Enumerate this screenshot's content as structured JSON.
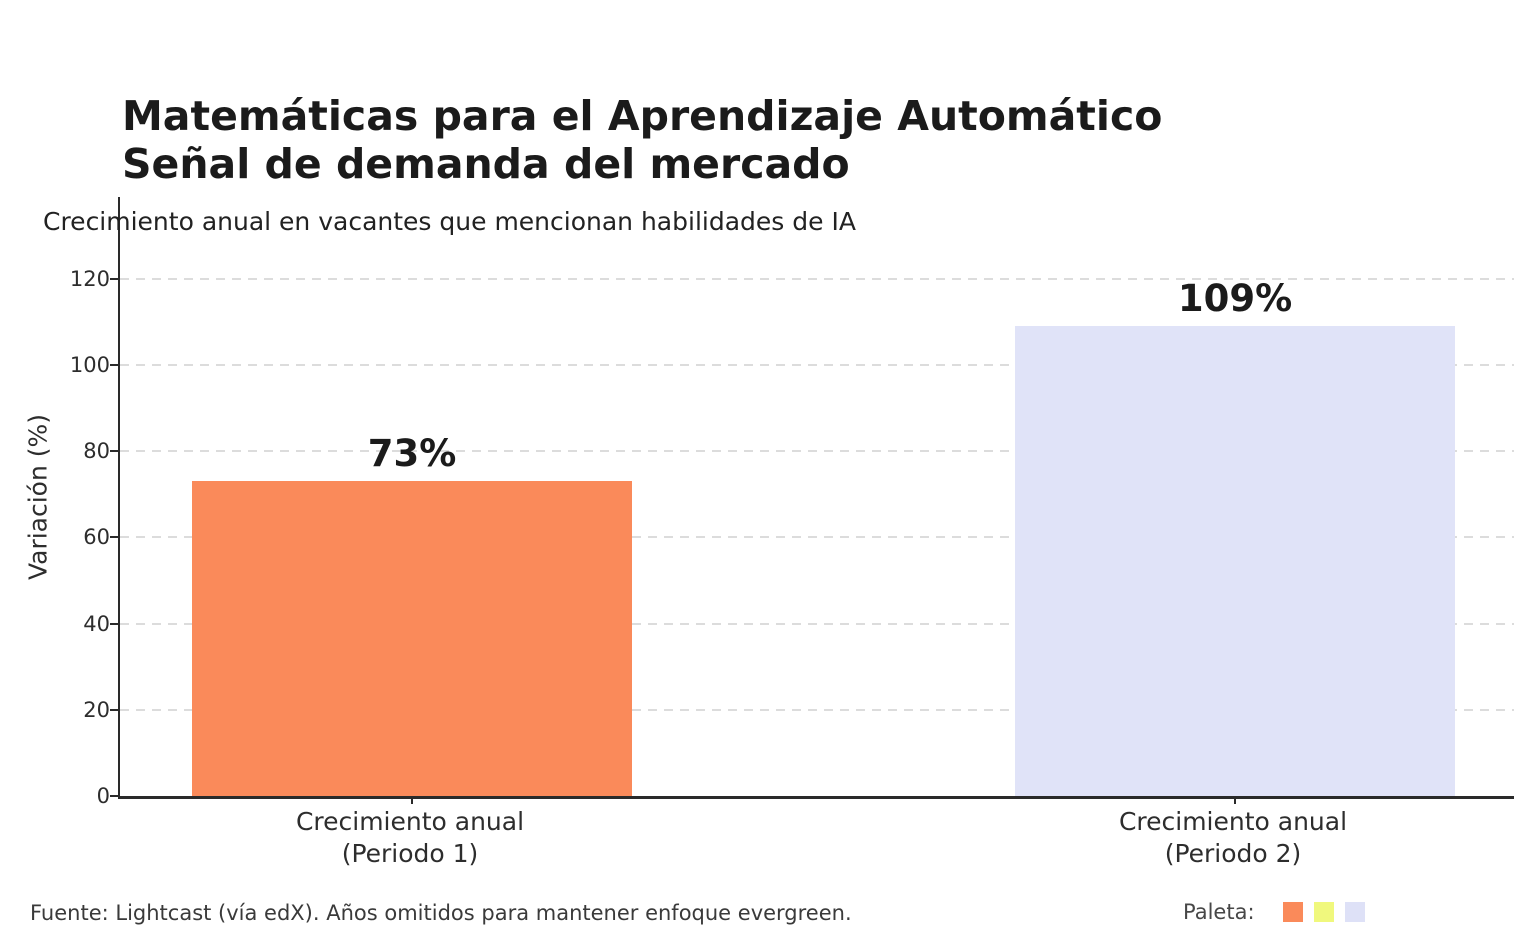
{
  "chart_data": {
    "type": "bar",
    "title": "Matemáticas para el Aprendizaje Automático\nSeñal de demanda del mercado",
    "subtitle": "Crecimiento anual en vacantes que mencionan habilidades de IA",
    "categories": [
      "Crecimiento anual\n(Periodo 1)",
      "Crecimiento anual\n(Periodo 2)"
    ],
    "values": [
      73,
      109
    ],
    "bar_labels": [
      "73%",
      "109%"
    ],
    "bar_colors": [
      "#fa8a5a",
      "#e0e3f8"
    ],
    "xlabel": "",
    "ylabel": "Variación (%)",
    "ylim": [
      0,
      139
    ],
    "yticks": [
      0,
      20,
      40,
      60,
      80,
      100,
      120
    ],
    "grid": "horizontal-dashed",
    "legend_position": "none"
  },
  "footer": {
    "source": "Fuente: Lightcast (vía edX). Años omitidos para mantener enfoque evergreen.",
    "palette_label": "Paleta:",
    "palette_colors": [
      "#fa8a5a",
      "#f0f87d",
      "#dee1f7"
    ]
  }
}
